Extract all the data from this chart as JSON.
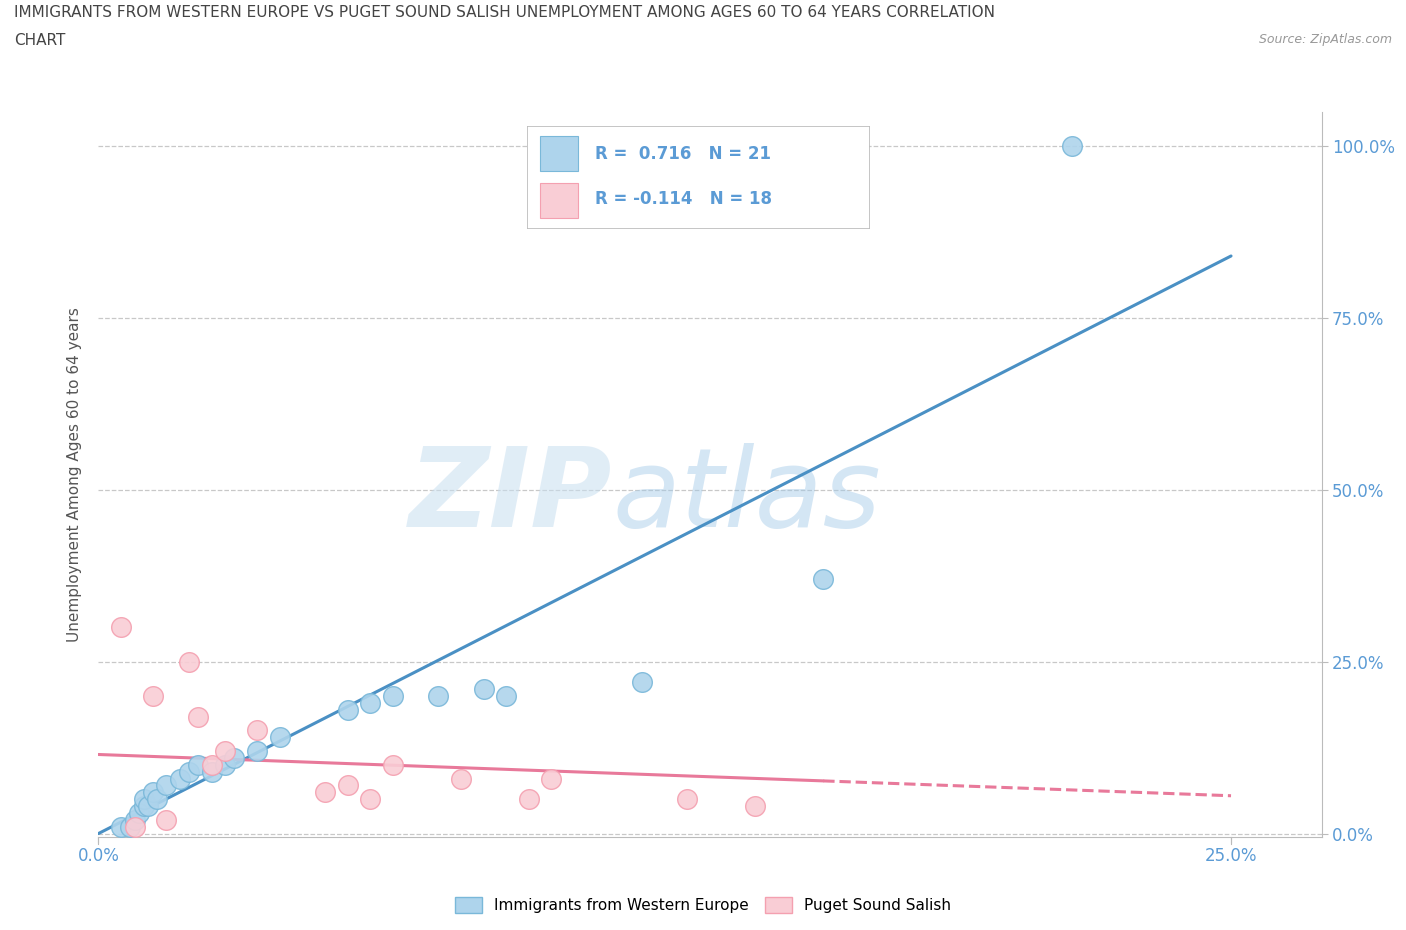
{
  "title_line1": "IMMIGRANTS FROM WESTERN EUROPE VS PUGET SOUND SALISH UNEMPLOYMENT AMONG AGES 60 TO 64 YEARS CORRELATION",
  "title_line2": "CHART",
  "source_text": "Source: ZipAtlas.com",
  "ylabel": "Unemployment Among Ages 60 to 64 years",
  "xlim": [
    0.0,
    0.27
  ],
  "ylim": [
    -0.005,
    1.05
  ],
  "watermark_zip": "ZIP",
  "watermark_atlas": "atlas",
  "blue_color": "#7ab8d9",
  "blue_fill": "#aed4ec",
  "pink_color": "#f4a0b0",
  "pink_fill": "#f9cdd5",
  "line_blue": "#4a90c4",
  "line_pink": "#e8799a",
  "background": "#ffffff",
  "grid_color": "#c8c8c8",
  "tick_color": "#5b9bd5",
  "title_color": "#444444",
  "blue_scatter_x": [
    0.005,
    0.007,
    0.008,
    0.009,
    0.01,
    0.01,
    0.011,
    0.012,
    0.013,
    0.015,
    0.018,
    0.02,
    0.022,
    0.025,
    0.028,
    0.03,
    0.035,
    0.04,
    0.055,
    0.06,
    0.065,
    0.075,
    0.085,
    0.09,
    0.12,
    0.16,
    0.215
  ],
  "blue_scatter_y": [
    0.01,
    0.01,
    0.02,
    0.03,
    0.04,
    0.05,
    0.04,
    0.06,
    0.05,
    0.07,
    0.08,
    0.09,
    0.1,
    0.09,
    0.1,
    0.11,
    0.12,
    0.14,
    0.18,
    0.19,
    0.2,
    0.2,
    0.21,
    0.2,
    0.22,
    0.37,
    1.0
  ],
  "pink_scatter_x": [
    0.005,
    0.008,
    0.012,
    0.015,
    0.02,
    0.022,
    0.025,
    0.028,
    0.035,
    0.05,
    0.055,
    0.06,
    0.065,
    0.08,
    0.095,
    0.1,
    0.13,
    0.145
  ],
  "pink_scatter_y": [
    0.3,
    0.01,
    0.2,
    0.02,
    0.25,
    0.17,
    0.1,
    0.12,
    0.15,
    0.06,
    0.07,
    0.05,
    0.1,
    0.08,
    0.05,
    0.08,
    0.05,
    0.04
  ],
  "blue_line_x": [
    0.0,
    0.25
  ],
  "blue_line_y": [
    0.0,
    0.84
  ],
  "pink_line_x": [
    0.0,
    0.25
  ],
  "pink_line_y": [
    0.115,
    0.055
  ],
  "xtick_vals": [
    0.0,
    0.25
  ],
  "xtick_labels": [
    "0.0%",
    "25.0%"
  ],
  "ytick_vals": [
    0.0,
    0.25,
    0.5,
    0.75,
    1.0
  ],
  "ytick_labels": [
    "0.0%",
    "25.0%",
    "50.0%",
    "75.0%",
    "100.0%"
  ],
  "legend_bottom_labels": [
    "Immigrants from Western Europe",
    "Puget Sound Salish"
  ]
}
